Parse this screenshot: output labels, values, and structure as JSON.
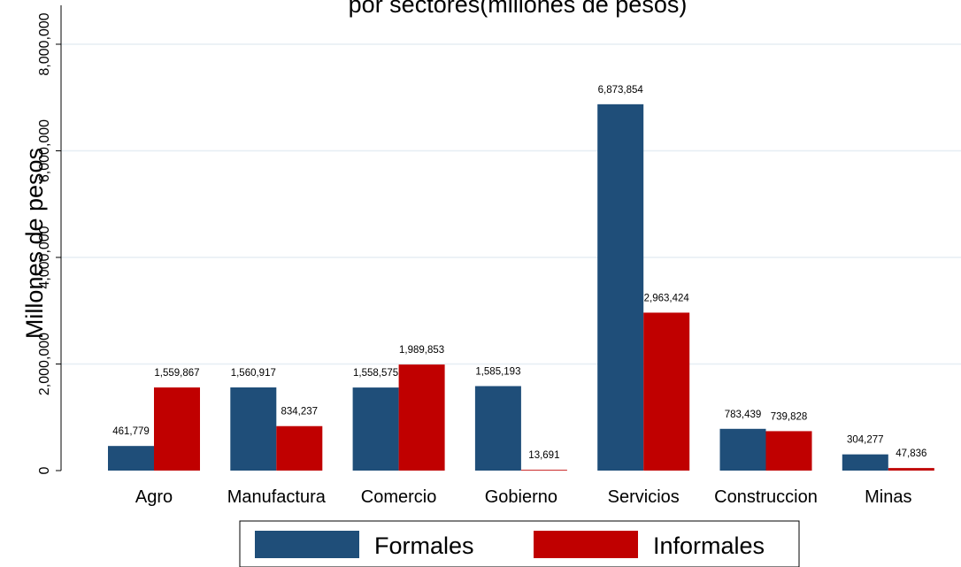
{
  "chart_data": {
    "type": "bar",
    "title": "por sectores(millones de pesos)",
    "ylabel": "Millones de pesos",
    "xlabel": "",
    "categories": [
      "Agro",
      "Manufactura",
      "Comercio",
      "Gobierno",
      "Servicios",
      "Construccion",
      "Minas"
    ],
    "series": [
      {
        "name": "Formales",
        "color": "#1f4e79",
        "values": [
          461779,
          1560917,
          1558575,
          1585193,
          6873854,
          783439,
          304277
        ],
        "labels": [
          "461,779",
          "1,560,917",
          "1,558,575",
          "1,585,193",
          "6,873,854",
          "783,439",
          "304,277"
        ]
      },
      {
        "name": "Informales",
        "color": "#c00000",
        "values": [
          1559867,
          834237,
          1989853,
          13691,
          2963424,
          739828,
          47836
        ],
        "labels": [
          "1,559,867",
          "834,237",
          "1,989,853",
          "13,691",
          "2,963,424",
          "739,828",
          "47,836"
        ]
      }
    ],
    "ylim": [
      0,
      8000000
    ],
    "yticks": [
      0,
      2000000,
      4000000,
      6000000,
      8000000
    ],
    "ytick_labels": [
      "0",
      "2,000,000",
      "4,000,000",
      "6,000,000",
      "8,000,000"
    ],
    "grid": true,
    "legend_position": "bottom"
  }
}
